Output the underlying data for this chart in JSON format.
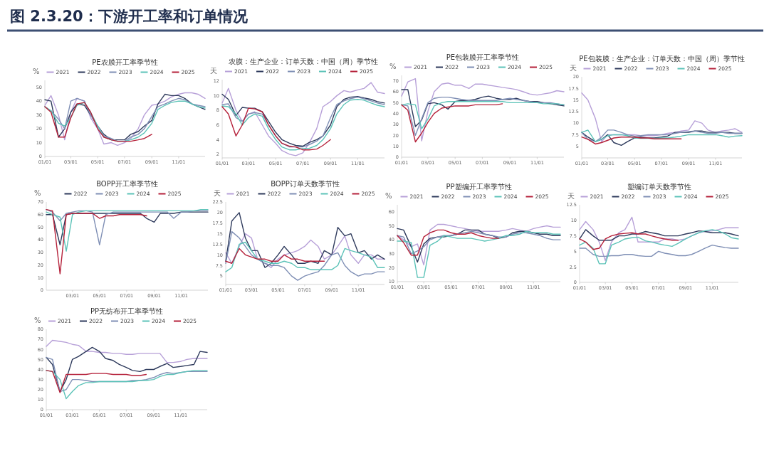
{
  "chart_data": [
    {
      "type": "other",
      "title": "图 2.3.20：下游开工率和订单情况"
    },
    {
      "type": "line",
      "title": "PE农膜开工率季节性",
      "ylabel": "%",
      "legend": "top",
      "xlim": [
        "--01-01",
        "--12-31"
      ],
      "ylim": [
        0,
        55
      ],
      "yticks": [
        0,
        10,
        20,
        30,
        40,
        50
      ],
      "xticks": [
        {
          "value": "--01-01",
          "label": "01/01"
        },
        {
          "value": "--03-01",
          "label": "03/01"
        },
        {
          "value": "--05-01",
          "label": "05/01"
        },
        {
          "value": "--07-01",
          "label": "07/01"
        },
        {
          "value": "--09-01",
          "label": "09/01"
        },
        {
          "value": "--11-01",
          "label": "11/01"
        }
      ],
      "x": [
        "--01-01",
        "--01-15",
        "--02-01",
        "--02-15",
        "--03-01",
        "--03-15",
        "--04-01",
        "--04-15",
        "--05-01",
        "--05-15",
        "--06-01",
        "--06-15",
        "--07-01",
        "--07-15",
        "--08-01",
        "--08-15",
        "--09-01",
        "--09-15",
        "--10-01",
        "--10-15",
        "--11-01",
        "--11-15",
        "--12-01",
        "--12-15",
        "--12-31"
      ],
      "series": [
        {
          "name": "2021",
          "color": "#b7a0d8",
          "values": [
            37,
            44,
            30,
            12,
            32,
            42,
            40,
            28,
            20,
            9,
            10,
            8,
            10,
            13,
            20,
            30,
            37,
            38,
            40,
            43,
            45,
            46,
            46,
            45,
            42
          ]
        },
        {
          "name": "2022",
          "color": "#2e3a5c",
          "values": [
            41,
            40,
            14,
            20,
            32,
            38,
            37,
            30,
            22,
            16,
            12,
            12,
            12,
            16,
            18,
            22,
            26,
            38,
            45,
            44,
            44,
            42,
            38,
            36,
            34
          ]
        },
        {
          "name": "2023",
          "color": "#7f8fb5",
          "values": [
            36,
            33,
            27,
            20,
            40,
            42,
            40,
            30,
            22,
            15,
            13,
            11,
            11,
            14,
            16,
            20,
            29,
            36,
            38,
            40,
            42,
            41,
            38,
            37,
            36
          ]
        },
        {
          "name": "2024",
          "color": "#5cc3b8",
          "values": [
            36,
            33,
            24,
            22,
            28,
            37,
            39,
            32,
            22,
            14,
            12,
            11,
            11,
            12,
            14,
            17,
            24,
            34,
            37,
            39,
            40,
            40,
            38,
            36,
            35
          ]
        },
        {
          "name": "2025",
          "color": "#b5213a",
          "values": [
            36,
            32,
            14,
            14,
            28,
            38,
            39,
            32,
            20,
            14,
            12,
            11,
            11,
            11,
            12,
            13,
            16,
            null,
            null,
            null,
            null,
            null,
            null,
            null,
            null
          ]
        }
      ]
    },
    {
      "type": "line",
      "title": "农膜：生产企业：订单天数：中国（周）季节性",
      "ylabel": "天",
      "legend": "top",
      "xlim": [
        "--01-01",
        "--12-31"
      ],
      "ylim": [
        1.5,
        12.2
      ],
      "yticks": [
        2,
        4,
        6,
        8,
        10,
        12
      ],
      "xticks": [
        {
          "value": "--01-01",
          "label": "01/01"
        },
        {
          "value": "--03-01",
          "label": "03/01"
        },
        {
          "value": "--05-01",
          "label": "05/01"
        },
        {
          "value": "--07-01",
          "label": "07/01"
        },
        {
          "value": "--09-01",
          "label": "09/01"
        },
        {
          "value": "--11-01",
          "label": "11/01"
        }
      ],
      "x": [
        "--01-01",
        "--01-15",
        "--02-01",
        "--02-15",
        "--03-01",
        "--03-15",
        "--04-01",
        "--04-15",
        "--05-01",
        "--05-15",
        "--06-01",
        "--06-15",
        "--07-01",
        "--07-15",
        "--08-01",
        "--08-15",
        "--09-01",
        "--09-15",
        "--10-01",
        "--10-15",
        "--11-01",
        "--11-15",
        "--12-01",
        "--12-15",
        "--12-31"
      ],
      "series": [
        {
          "name": "2021",
          "color": "#b7a0d8",
          "values": [
            9,
            11,
            8,
            6.5,
            7.5,
            7.8,
            6,
            4.5,
            3.5,
            2.5,
            2,
            1.8,
            2.2,
            3.5,
            5.5,
            8.5,
            9.2,
            10,
            10.7,
            10.5,
            10.8,
            11,
            11.8,
            10.5,
            10.3
          ]
        },
        {
          "name": "2022",
          "color": "#2e3a5c",
          "values": [
            10.2,
            9.5,
            7.3,
            8.4,
            8.3,
            8.3,
            7.8,
            6.5,
            5,
            4,
            3.5,
            3.2,
            3.1,
            3.6,
            4,
            4.5,
            6,
            8.5,
            9.5,
            9.8,
            9.9,
            9.7,
            9.5,
            9.2,
            9
          ]
        },
        {
          "name": "2023",
          "color": "#7f8fb5",
          "values": [
            8.8,
            8.9,
            7,
            6.5,
            7.5,
            7.7,
            7.5,
            6,
            4.5,
            3.5,
            3,
            3,
            3,
            3.3,
            3.8,
            4.5,
            7,
            8.8,
            9.3,
            9.6,
            9.8,
            9.6,
            9.3,
            9,
            8.8
          ]
        },
        {
          "name": "2024",
          "color": "#5cc3b8",
          "values": [
            8.6,
            8.5,
            7.5,
            6,
            7,
            7.5,
            7.2,
            5.5,
            4,
            3,
            2.6,
            2.6,
            2.8,
            2.8,
            3.2,
            4,
            5.5,
            7.5,
            8.8,
            9.4,
            9.5,
            9.4,
            9,
            8.7,
            8.5
          ]
        },
        {
          "name": "2025",
          "color": "#b5213a",
          "values": [
            8.5,
            7.5,
            4.5,
            6,
            8.3,
            8.2,
            7.8,
            6,
            4.5,
            3.5,
            3.1,
            3,
            2.6,
            2.6,
            2.7,
            3.2,
            4,
            null,
            null,
            null,
            null,
            null,
            null,
            null,
            null
          ]
        }
      ]
    },
    {
      "type": "line",
      "title": "PE包装膜开工率季节性",
      "ylabel": "%",
      "legend": "top",
      "xlim": [
        "--01-01",
        "--12-31"
      ],
      "ylim": [
        0,
        75
      ],
      "yticks": [
        0,
        10,
        20,
        30,
        40,
        50,
        60,
        70
      ],
      "xticks": [
        {
          "value": "--01-01",
          "label": "01/01"
        },
        {
          "value": "--03-01",
          "label": "03/01"
        },
        {
          "value": "--05-01",
          "label": "05/01"
        },
        {
          "value": "--07-01",
          "label": "07/01"
        },
        {
          "value": "--09-01",
          "label": "09/01"
        },
        {
          "value": "--11-01",
          "label": "11/01"
        }
      ],
      "x": [
        "--01-01",
        "--01-15",
        "--02-01",
        "--02-15",
        "--03-01",
        "--03-15",
        "--04-01",
        "--04-15",
        "--05-01",
        "--05-15",
        "--06-01",
        "--06-15",
        "--07-01",
        "--07-15",
        "--08-01",
        "--08-15",
        "--09-01",
        "--09-15",
        "--10-01",
        "--10-15",
        "--11-01",
        "--11-15",
        "--12-01",
        "--12-15",
        "--12-31"
      ],
      "series": [
        {
          "name": "2021",
          "color": "#b7a0d8",
          "values": [
            56,
            69,
            72,
            15,
            42,
            60,
            67,
            68,
            66,
            66,
            63,
            67,
            67,
            66,
            65,
            64,
            63,
            62,
            60,
            58,
            57,
            58,
            59,
            61,
            60
          ]
        },
        {
          "name": "2022",
          "color": "#2e3a5c",
          "values": [
            62,
            62,
            28,
            34,
            49,
            50,
            48,
            44,
            51,
            52,
            52,
            53,
            55,
            56,
            54,
            53,
            53,
            54,
            52,
            51,
            51,
            50,
            49,
            48,
            47
          ]
        },
        {
          "name": "2023",
          "color": "#7f8fb5",
          "values": [
            48,
            47,
            20,
            35,
            50,
            54,
            55,
            55,
            54,
            53,
            52,
            52,
            52,
            52,
            52,
            53,
            54,
            53,
            52,
            51,
            50,
            50,
            50,
            49,
            48
          ]
        },
        {
          "name": "2024",
          "color": "#5cc3b8",
          "values": [
            48,
            49,
            48,
            26,
            35,
            47,
            50,
            51,
            51,
            51,
            51,
            51,
            51,
            51,
            51,
            51,
            50,
            50,
            50,
            50,
            50,
            49,
            49,
            49,
            48
          ]
        },
        {
          "name": "2025",
          "color": "#b5213a",
          "values": [
            48,
            43,
            14,
            22,
            32,
            40,
            45,
            46,
            47,
            47,
            47,
            48,
            48,
            48,
            48,
            49,
            null,
            null,
            null,
            null,
            null,
            null,
            null,
            null,
            null
          ]
        }
      ]
    },
    {
      "type": "line",
      "title": "PE包装膜：生产企业：订单天数：中国（周）季节性",
      "ylabel": "天",
      "legend": "top",
      "xlim": [
        "--01-01",
        "--12-31"
      ],
      "ylim": [
        2.5,
        20
      ],
      "yticks": [
        5,
        7.5,
        10,
        12.5,
        15,
        17.5,
        20
      ],
      "xticks": [
        {
          "value": "--01-01",
          "label": "01/01"
        },
        {
          "value": "--03-01",
          "label": "03/01"
        },
        {
          "value": "--05-01",
          "label": "05/01"
        },
        {
          "value": "--07-01",
          "label": "07/01"
        },
        {
          "value": "--09-01",
          "label": "09/01"
        },
        {
          "value": "--11-01",
          "label": "11/01"
        }
      ],
      "x": [
        "--01-01",
        "--01-15",
        "--02-01",
        "--02-15",
        "--03-01",
        "--03-15",
        "--04-01",
        "--04-15",
        "--05-01",
        "--05-15",
        "--06-01",
        "--06-15",
        "--07-01",
        "--07-15",
        "--08-01",
        "--08-15",
        "--09-01",
        "--09-15",
        "--10-01",
        "--10-15",
        "--11-01",
        "--11-15",
        "--12-01",
        "--12-15",
        "--12-31"
      ],
      "series": [
        {
          "name": "2021",
          "color": "#b7a0d8",
          "values": [
            16.5,
            15,
            11,
            6,
            7.5,
            7.5,
            7.5,
            7.5,
            7.5,
            7.3,
            7.3,
            7.3,
            7.5,
            7.8,
            8,
            8.3,
            8.5,
            10.5,
            10,
            8.5,
            8,
            8.3,
            8.5,
            8.8,
            8
          ]
        },
        {
          "name": "2022",
          "color": "#2e3a5c",
          "values": [
            8,
            7,
            6,
            6.5,
            7.5,
            5.8,
            5.2,
            6,
            6.8,
            7,
            6.8,
            6.8,
            7,
            7.2,
            8,
            8,
            8,
            8.3,
            8.3,
            8,
            8,
            8,
            8,
            7.8,
            7.8
          ]
        },
        {
          "name": "2023",
          "color": "#7f8fb5",
          "values": [
            8,
            6.5,
            6,
            7,
            8.5,
            8.5,
            8,
            7.5,
            7.2,
            7.3,
            7.5,
            7.5,
            7.5,
            7.5,
            7.8,
            8,
            8.2,
            8.3,
            8,
            7.8,
            7.8,
            8,
            7.8,
            7.8,
            7.8
          ]
        },
        {
          "name": "2024",
          "color": "#5cc3b8",
          "values": [
            8,
            8.5,
            6,
            6.5,
            7.3,
            7.5,
            7.5,
            7.3,
            6.8,
            6.7,
            6.7,
            6.7,
            6.8,
            6.8,
            7,
            7.2,
            7.5,
            7.5,
            7.5,
            7.5,
            7.5,
            7.3,
            7,
            7.2,
            7.3
          ]
        },
        {
          "name": "2025",
          "color": "#b5213a",
          "values": [
            7,
            6.5,
            5.5,
            5.8,
            6.3,
            6.8,
            7,
            7,
            7,
            6.8,
            6.8,
            6.6,
            6.6,
            6.6,
            6.6,
            6.6,
            null,
            null,
            null,
            null,
            null,
            null,
            null,
            null,
            null
          ]
        }
      ]
    },
    {
      "type": "line",
      "title": "BOPP开工率季节性",
      "ylabel": "%",
      "legend": "top",
      "xlim": [
        "--01-01",
        "--12-31"
      ],
      "ylim": [
        0,
        70
      ],
      "yticks": [
        0,
        10,
        20,
        30,
        40,
        50,
        60,
        70
      ],
      "xticks": [
        {
          "value": "--03-01",
          "label": "03/01"
        },
        {
          "value": "--05-01",
          "label": "05/01"
        },
        {
          "value": "--07-01",
          "label": "07/01"
        },
        {
          "value": "--09-01",
          "label": "09/01"
        },
        {
          "value": "--11-01",
          "label": "11/01"
        }
      ],
      "x": [
        "--01-01",
        "--01-15",
        "--02-01",
        "--02-15",
        "--03-01",
        "--03-15",
        "--04-01",
        "--04-15",
        "--05-01",
        "--05-15",
        "--06-01",
        "--06-15",
        "--07-01",
        "--07-15",
        "--08-01",
        "--08-15",
        "--09-01",
        "--09-15",
        "--10-01",
        "--10-15",
        "--11-01",
        "--11-15",
        "--12-01",
        "--12-15",
        "--12-31"
      ],
      "series": [
        {
          "name": "2022",
          "color": "#2e3a5c",
          "values": [
            60,
            60,
            36,
            60,
            61,
            61,
            61,
            61,
            61,
            61,
            61,
            61,
            61,
            61,
            61,
            57,
            54,
            61,
            61,
            61,
            62,
            62,
            62,
            62,
            62
          ]
        },
        {
          "name": "2023",
          "color": "#7f8fb5",
          "values": [
            64,
            62,
            55,
            61,
            62,
            63,
            63,
            62,
            36,
            60,
            62,
            62,
            62,
            62,
            62,
            62,
            62,
            62,
            62,
            57,
            62,
            62,
            63,
            63,
            63
          ]
        },
        {
          "name": "2024",
          "color": "#5cc3b8",
          "values": [
            62,
            60,
            58,
            31,
            60,
            62,
            63,
            63,
            63,
            63,
            63,
            63,
            63,
            63,
            63,
            63,
            63,
            63,
            63,
            63,
            63,
            63,
            63,
            64,
            64
          ]
        },
        {
          "name": "2025",
          "color": "#b5213a",
          "values": [
            64,
            63,
            13,
            60,
            61,
            61,
            61,
            61,
            57,
            59,
            59,
            60,
            60,
            60,
            60,
            59,
            null,
            null,
            null,
            null,
            null,
            null,
            null,
            null,
            null
          ]
        }
      ]
    },
    {
      "type": "line",
      "title": "BOPP订单天数季节性",
      "ylabel": "天",
      "legend": "top",
      "xlim": [
        "--01-01",
        "--12-31"
      ],
      "ylim": [
        3,
        22.5
      ],
      "yticks": [
        5,
        7.5,
        10,
        12.5,
        15,
        17.5,
        20,
        22.5
      ],
      "xticks": [
        {
          "value": "--01-01",
          "label": "01/01"
        },
        {
          "value": "--03-01",
          "label": "03/01"
        },
        {
          "value": "--05-01",
          "label": "05/01"
        },
        {
          "value": "--07-01",
          "label": "07/01"
        },
        {
          "value": "--09-01",
          "label": "09/01"
        },
        {
          "value": "--11-01",
          "label": "11/01"
        }
      ],
      "x": [
        "--01-01",
        "--01-15",
        "--02-01",
        "--02-15",
        "--03-01",
        "--03-15",
        "--04-01",
        "--04-15",
        "--05-01",
        "--05-15",
        "--06-01",
        "--06-15",
        "--07-01",
        "--07-15",
        "--08-01",
        "--08-15",
        "--09-01",
        "--09-15",
        "--10-01",
        "--10-15",
        "--11-01",
        "--11-15",
        "--12-01",
        "--12-15",
        "--12-31"
      ],
      "series": [
        {
          "name": "2021",
          "color": "#b7a0d8",
          "values": [
            10.5,
            8,
            12,
            15,
            14,
            9,
            8,
            7,
            9,
            10,
            10.5,
            11,
            12,
            13.5,
            12,
            9,
            10,
            12,
            14.5,
            10,
            8,
            10,
            10,
            9,
            9
          ]
        },
        {
          "name": "2022",
          "color": "#2e3a5c",
          "values": [
            8.5,
            18,
            20,
            14,
            11,
            11,
            7,
            8,
            10,
            12,
            10,
            8,
            8,
            8.5,
            8,
            11,
            10,
            16.5,
            14.5,
            15,
            10.5,
            11,
            9,
            10,
            9
          ]
        },
        {
          "name": "2023",
          "color": "#7f8fb5",
          "values": [
            8,
            15.5,
            14,
            12,
            10,
            9,
            8,
            7.5,
            7.5,
            7,
            5,
            4,
            5,
            5.5,
            6,
            7.5,
            10,
            10.5,
            7.5,
            6,
            5,
            5.5,
            5.5,
            6,
            6
          ]
        },
        {
          "name": "2024",
          "color": "#5cc3b8",
          "values": [
            6,
            7,
            12.5,
            13,
            11,
            9,
            8.5,
            8,
            8,
            8.5,
            8,
            7,
            7,
            6.5,
            6.5,
            6.5,
            6.5,
            7.5,
            11.5,
            11,
            10.5,
            10,
            9.5,
            7,
            7
          ]
        },
        {
          "name": "2025",
          "color": "#b5213a",
          "values": [
            8.5,
            8,
            11.5,
            10,
            9.5,
            9,
            9,
            8.5,
            8.5,
            10,
            9,
            9,
            8.5,
            8.5,
            8.5,
            8.5,
            null,
            null,
            null,
            null,
            null,
            null,
            null,
            null,
            null
          ]
        }
      ]
    },
    {
      "type": "line",
      "title": "PP塑编开工率季节性",
      "ylabel": "%",
      "legend": "top",
      "xlim": [
        "--01-01",
        "--12-31"
      ],
      "ylim": [
        10,
        65
      ],
      "yticks": [
        10,
        20,
        30,
        40,
        50,
        60
      ],
      "xticks": [
        {
          "value": "--01-01",
          "label": "01/01"
        },
        {
          "value": "--03-01",
          "label": "03/01"
        },
        {
          "value": "--05-01",
          "label": "05/01"
        },
        {
          "value": "--07-01",
          "label": "07/01"
        },
        {
          "value": "--09-01",
          "label": "09/01"
        },
        {
          "value": "--11-01",
          "label": "11/01"
        }
      ],
      "x": [
        "--01-01",
        "--01-15",
        "--02-01",
        "--02-15",
        "--03-01",
        "--03-15",
        "--04-01",
        "--04-15",
        "--05-01",
        "--05-15",
        "--06-01",
        "--06-15",
        "--07-01",
        "--07-15",
        "--08-01",
        "--08-15",
        "--09-01",
        "--09-15",
        "--10-01",
        "--10-15",
        "--11-01",
        "--11-15",
        "--12-01",
        "--12-15",
        "--12-31"
      ],
      "series": [
        {
          "name": "2021",
          "color": "#b7a0d8",
          "values": [
            43,
            40,
            35,
            37,
            22,
            47,
            51,
            51,
            50,
            49,
            48,
            47,
            46,
            46,
            46,
            46,
            47,
            48,
            47,
            46,
            48,
            49,
            50,
            49,
            49
          ]
        },
        {
          "name": "2022",
          "color": "#2e3a5c",
          "values": [
            48,
            47,
            35,
            24,
            37,
            41,
            42,
            42,
            43,
            44,
            47,
            47,
            47,
            44,
            43,
            41,
            42,
            45,
            46,
            46,
            45,
            44,
            44,
            43,
            43
          ]
        },
        {
          "name": "2023",
          "color": "#7f8fb5",
          "values": [
            43,
            42,
            30,
            32,
            35,
            40,
            42,
            43,
            43,
            44,
            45,
            46,
            45,
            44,
            43,
            42,
            42,
            44,
            45,
            45,
            44,
            43,
            41,
            40,
            40
          ]
        },
        {
          "name": "2024",
          "color": "#5cc3b8",
          "values": [
            39,
            39,
            38,
            13,
            13,
            36,
            39,
            43,
            42,
            41,
            41,
            41,
            40,
            39,
            40,
            41,
            43,
            43,
            44,
            46,
            45,
            45,
            45,
            44,
            44
          ]
        },
        {
          "name": "2025",
          "color": "#b5213a",
          "values": [
            43,
            38,
            29,
            29,
            42,
            45,
            47,
            47,
            45,
            44,
            44,
            45,
            43,
            42,
            41,
            41,
            null,
            null,
            null,
            null,
            null,
            null,
            null,
            null,
            null
          ]
        }
      ]
    },
    {
      "type": "line",
      "title": "塑编订单天数季节性",
      "ylabel": "天",
      "legend": "top",
      "xlim": [
        "--01-01",
        "--12-31"
      ],
      "ylim": [
        0,
        12.5
      ],
      "yticks": [
        0,
        2.5,
        5,
        7.5,
        10,
        12.5
      ],
      "xticks": [
        {
          "value": "--01-01",
          "label": "01/01"
        },
        {
          "value": "--03-01",
          "label": "03/01"
        },
        {
          "value": "--05-01",
          "label": "05/01"
        },
        {
          "value": "--07-01",
          "label": "07/01"
        },
        {
          "value": "--09-01",
          "label": "09/01"
        },
        {
          "value": "--11-01",
          "label": "11/01"
        }
      ],
      "x": [
        "--01-01",
        "--01-15",
        "--02-01",
        "--02-15",
        "--03-01",
        "--03-15",
        "--04-01",
        "--04-15",
        "--05-01",
        "--05-15",
        "--06-01",
        "--06-15",
        "--07-01",
        "--07-15",
        "--08-01",
        "--08-15",
        "--09-01",
        "--09-15",
        "--10-01",
        "--10-15",
        "--11-01",
        "--11-15",
        "--12-01",
        "--12-15",
        "--12-31"
      ],
      "series": [
        {
          "name": "2021",
          "color": "#b7a0d8",
          "values": [
            8.5,
            9.8,
            8.5,
            6.5,
            3.5,
            6.5,
            8,
            8.5,
            10.5,
            6.5,
            6.5,
            6.5,
            6.5,
            7,
            7,
            6.8,
            7,
            7.5,
            8,
            8.2,
            8.3,
            8.5,
            8.8,
            8.8,
            8.8
          ]
        },
        {
          "name": "2022",
          "color": "#2e3a5c",
          "values": [
            7,
            8.5,
            7.5,
            6.8,
            6.8,
            6.8,
            7.5,
            7.5,
            7.8,
            7.8,
            8.2,
            8,
            7.8,
            7.5,
            7.5,
            7.5,
            7.8,
            8,
            8.3,
            8.2,
            8,
            8,
            8,
            7.8,
            7.5
          ]
        },
        {
          "name": "2023",
          "color": "#7f8fb5",
          "values": [
            5.5,
            5.5,
            4.5,
            4.2,
            4.2,
            4.3,
            4.3,
            4.5,
            4.5,
            4.3,
            4.2,
            4.2,
            5,
            4.7,
            4.5,
            4.3,
            4.3,
            4.5,
            5,
            5.5,
            6,
            5.8,
            5.6,
            5.5,
            5.5
          ]
        },
        {
          "name": "2024",
          "color": "#5cc3b8",
          "values": [
            6,
            6.5,
            5.5,
            3,
            3,
            6,
            6.5,
            7,
            7.2,
            7.3,
            6.7,
            6.5,
            6.2,
            6,
            5.8,
            6.3,
            7,
            7.5,
            8,
            8.3,
            8.5,
            8.3,
            7.8,
            7.2,
            7
          ]
        },
        {
          "name": "2025",
          "color": "#b5213a",
          "values": [
            7,
            6.5,
            5.3,
            5.5,
            7,
            7.5,
            7.8,
            7.9,
            8,
            7.8,
            7.8,
            7.5,
            7.2,
            7,
            6.8,
            6.8,
            null,
            null,
            null,
            null,
            null,
            null,
            null,
            null,
            null
          ]
        }
      ]
    },
    {
      "type": "line",
      "title": "PP无纺布开工率季节性",
      "ylabel": "%",
      "legend": "top",
      "xlim": [
        "--01-01",
        "--12-31"
      ],
      "ylim": [
        0,
        80
      ],
      "yticks": [
        0,
        10,
        20,
        30,
        40,
        50,
        60,
        70,
        80
      ],
      "xticks": [
        {
          "value": "--01-01",
          "label": "01/01"
        },
        {
          "value": "--03-01",
          "label": "03/01"
        },
        {
          "value": "--05-01",
          "label": "05/01"
        },
        {
          "value": "--07-01",
          "label": "07/01"
        },
        {
          "value": "--09-01",
          "label": "09/01"
        },
        {
          "value": "--11-01",
          "label": "11/01"
        }
      ],
      "x": [
        "--01-01",
        "--01-15",
        "--02-01",
        "--02-15",
        "--03-01",
        "--03-15",
        "--04-01",
        "--04-15",
        "--05-01",
        "--05-15",
        "--06-01",
        "--06-15",
        "--07-01",
        "--07-15",
        "--08-01",
        "--08-15",
        "--09-01",
        "--09-15",
        "--10-01",
        "--10-15",
        "--11-01",
        "--11-15",
        "--12-01",
        "--12-15",
        "--12-31"
      ],
      "series": [
        {
          "name": "2021",
          "color": "#b7a0d8",
          "values": [
            63,
            69,
            68,
            67,
            65,
            64,
            58,
            58,
            57,
            57,
            56,
            56,
            55,
            55,
            56,
            56,
            56,
            56,
            47,
            47,
            48,
            50,
            51,
            51,
            51
          ]
        },
        {
          "name": "2022",
          "color": "#2e3a5c",
          "values": [
            52,
            45,
            18,
            30,
            50,
            53,
            58,
            62,
            58,
            51,
            49,
            45,
            42,
            39,
            38,
            40,
            40,
            43,
            46,
            42,
            43,
            44,
            45,
            58,
            57
          ]
        },
        {
          "name": "2023",
          "color": "#7f8fb5",
          "values": [
            52,
            50,
            18,
            20,
            30,
            30,
            29,
            28,
            28,
            28,
            28,
            28,
            28,
            29,
            29,
            30,
            32,
            35,
            37,
            36,
            37,
            38,
            38,
            38,
            38
          ]
        },
        {
          "name": "2024",
          "color": "#5cc3b8",
          "values": [
            39,
            38,
            30,
            11,
            18,
            24,
            27,
            27,
            28,
            28,
            28,
            28,
            28,
            28,
            29,
            29,
            30,
            33,
            35,
            35,
            37,
            38,
            39,
            39,
            39
          ]
        },
        {
          "name": "2025",
          "color": "#b5213a",
          "values": [
            39,
            38,
            17,
            35,
            35,
            35,
            35,
            36,
            36,
            36,
            35,
            35,
            35,
            34,
            34,
            35,
            null,
            null,
            null,
            null,
            null,
            null,
            null,
            null,
            null
          ]
        }
      ]
    }
  ]
}
